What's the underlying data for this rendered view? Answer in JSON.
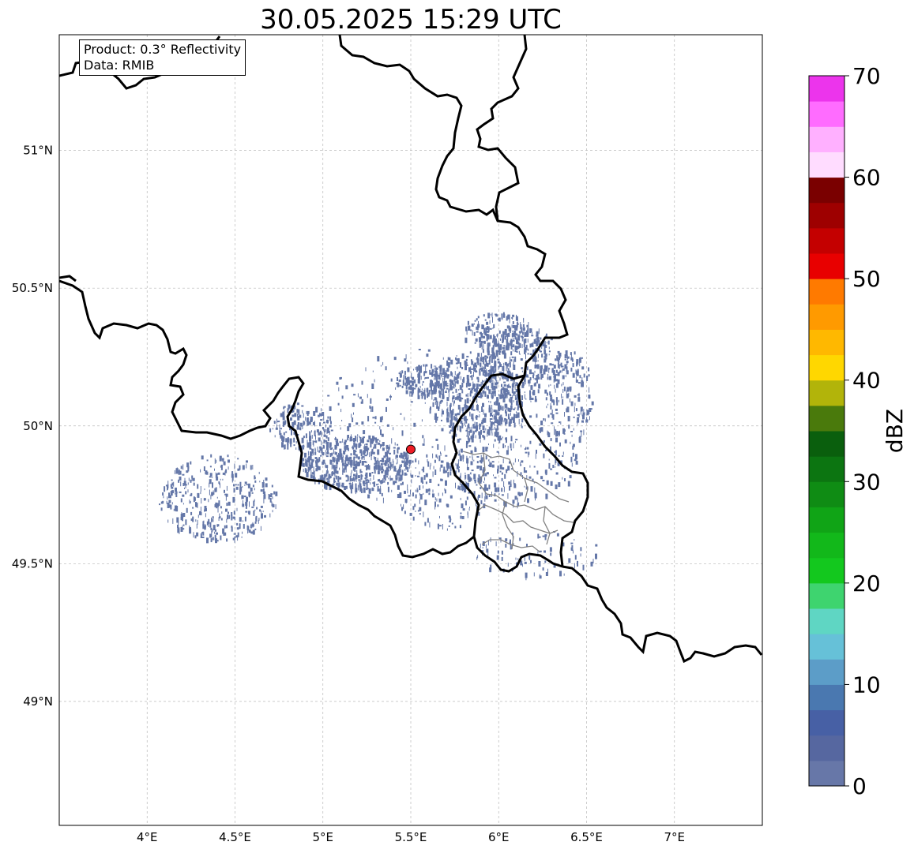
{
  "title": "30.05.2025 15:29 UTC",
  "info_box": {
    "product_line": "Product: 0.3° Reflectivity",
    "data_line": "Data: RMIB"
  },
  "map": {
    "extent": {
      "lon_min": 3.5,
      "lon_max": 7.5,
      "lat_min": 48.55,
      "lat_max": 51.42
    },
    "lon_ticks": [
      {
        "value": 4.0,
        "label": "4°E"
      },
      {
        "value": 4.5,
        "label": "4.5°E"
      },
      {
        "value": 5.0,
        "label": "5°E"
      },
      {
        "value": 5.5,
        "label": "5.5°E"
      },
      {
        "value": 6.0,
        "label": "6°E"
      },
      {
        "value": 6.5,
        "label": "6.5°E"
      },
      {
        "value": 7.0,
        "label": "7°E"
      }
    ],
    "lat_ticks": [
      {
        "value": 51.0,
        "label": "51°N"
      },
      {
        "value": 50.5,
        "label": "50.5°N"
      },
      {
        "value": 50.0,
        "label": "50°N"
      },
      {
        "value": 49.5,
        "label": "49.5°N"
      },
      {
        "value": 49.0,
        "label": "49°N"
      }
    ],
    "radar_site": {
      "lon": 5.5,
      "lat": 49.915,
      "color": "#ee1c25"
    },
    "echo_color": "#6477a8",
    "country_border_color": "#000000",
    "admin_border_color": "#808080"
  },
  "colorbar": {
    "label": "dBZ",
    "tick_labels": [
      {
        "value": 0,
        "label": "0"
      },
      {
        "value": 10,
        "label": "10"
      },
      {
        "value": 20,
        "label": "20"
      },
      {
        "value": 30,
        "label": "30"
      },
      {
        "value": 40,
        "label": "40"
      },
      {
        "value": 50,
        "label": "50"
      },
      {
        "value": 60,
        "label": "60"
      },
      {
        "value": 70,
        "label": "70"
      }
    ],
    "vmin": 0,
    "vmax": 70,
    "step": 2.5,
    "colors": [
      "#6777a8",
      "#5667a0",
      "#4760a5",
      "#4a78b0",
      "#5c9dc8",
      "#66c1d8",
      "#5fd6c3",
      "#3ed46f",
      "#13c81e",
      "#12b81a",
      "#10a416",
      "#0f8c14",
      "#0c7511",
      "#0a5f0d",
      "#4a7a0c",
      "#b2b40a",
      "#ffd700",
      "#ffb800",
      "#ff9a00",
      "#ff7a00",
      "#e80000",
      "#c40000",
      "#9e0000",
      "#7a0000",
      "#ffdcff",
      "#ffb0ff",
      "#ff6cff",
      "#ec34ec"
    ]
  }
}
